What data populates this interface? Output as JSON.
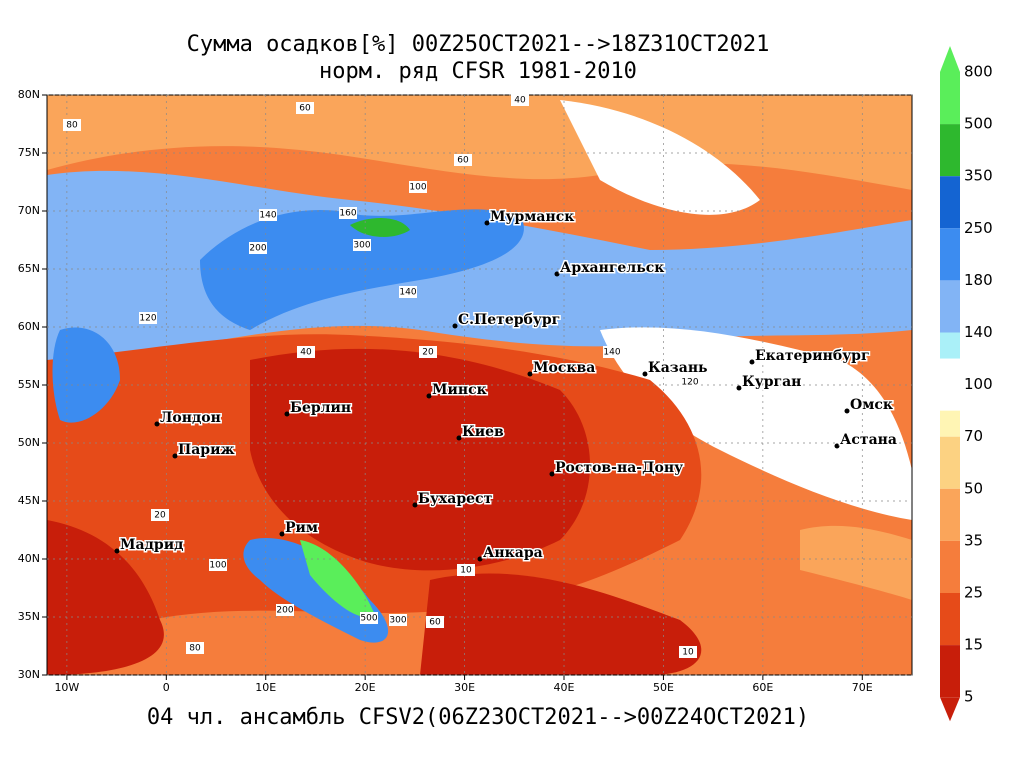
{
  "map": {
    "title": "Сумма осадков[%] 00Z25OCT2021-->18Z31OCT2021",
    "subtitle": "норм. ряд CFSR 1981-2010",
    "footer": "04 чл. ансамбль CFSV2(06Z23OCT2021-->00Z24OCT2021)",
    "xticks": [
      {
        "value": -10,
        "label": "10W"
      },
      0,
      {
        "value": 10,
        "label": "10E"
      },
      {
        "value": 20,
        "label": "20E"
      },
      {
        "value": 30,
        "label": "30E"
      },
      {
        "value": 40,
        "label": "40E"
      },
      {
        "value": 50,
        "label": "50E"
      },
      {
        "value": 60,
        "label": "60E"
      },
      {
        "value": 70,
        "label": "70E"
      }
    ],
    "yticks": [
      {
        "value": 80,
        "label": "80N"
      },
      {
        "value": 75,
        "label": "75N"
      },
      {
        "value": 70,
        "label": "70N"
      },
      {
        "value": 65,
        "label": "65N"
      },
      {
        "value": 60,
        "label": "60N"
      },
      {
        "value": 55,
        "label": "55N"
      },
      {
        "value": 50,
        "label": "50N"
      },
      {
        "value": 45,
        "label": "45N"
      },
      {
        "value": 40,
        "label": "40N"
      },
      {
        "value": 35,
        "label": "35N"
      },
      {
        "value": 30,
        "label": "30N"
      }
    ],
    "xlim": [
      -12,
      75
    ],
    "ylim": [
      30,
      80
    ],
    "colorbar": {
      "levels": [
        800,
        500,
        350,
        250,
        180,
        140,
        100,
        70,
        50,
        35,
        25,
        15,
        5
      ],
      "colors": [
        "#5aee5a",
        "#5aee5a",
        "#2eb82e",
        "#1464d2",
        "#3c8cf0",
        "#82b4f5",
        "#aaf0f8",
        "#fff5b4",
        "#fcd282",
        "#faa55a",
        "#f57d3c",
        "#e64b19",
        "#c81e0a",
        "#c81e0a"
      ]
    },
    "cities": [
      "Мурманск",
      "Архангельск",
      "С.Петербург",
      "Москва",
      "Казань",
      "Екатеринбург",
      "Курган",
      "Омск",
      "Астана",
      "Минск",
      "Берлин",
      "Лондон",
      "Париж",
      "Киев",
      "Ростов-на-Дону",
      "Бухарест",
      "Рим",
      "Мадрид",
      "Анкара"
    ],
    "contour_labels": [
      80,
      60,
      40,
      100,
      140,
      200,
      300,
      160,
      140,
      120,
      60,
      40,
      20,
      10,
      500,
      300,
      200,
      60,
      80,
      20,
      10,
      100,
      140,
      120
    ]
  }
}
